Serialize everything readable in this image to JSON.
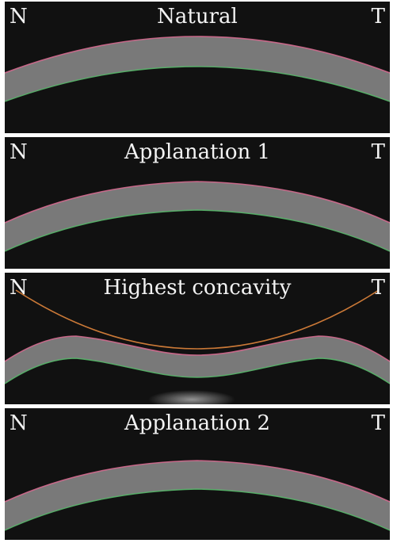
{
  "panels": [
    {
      "title": "Natural",
      "left_label": "N",
      "right_label": "T",
      "shape": "convex-arc"
    },
    {
      "title": "Applanation 1",
      "left_label": "N",
      "right_label": "T",
      "shape": "flattened-apex"
    },
    {
      "title": "Highest concavity",
      "left_label": "N",
      "right_label": "T",
      "shape": "inward-concavity"
    },
    {
      "title": "Applanation 2",
      "left_label": "N",
      "right_label": "T",
      "shape": "flattened-apex"
    }
  ],
  "colors": {
    "background": "#111111",
    "cornea": "#8c8c8c",
    "anterior_edge": "#d46a8f",
    "posterior_edge": "#58b86a",
    "overlay_curve": "#d6803a"
  }
}
